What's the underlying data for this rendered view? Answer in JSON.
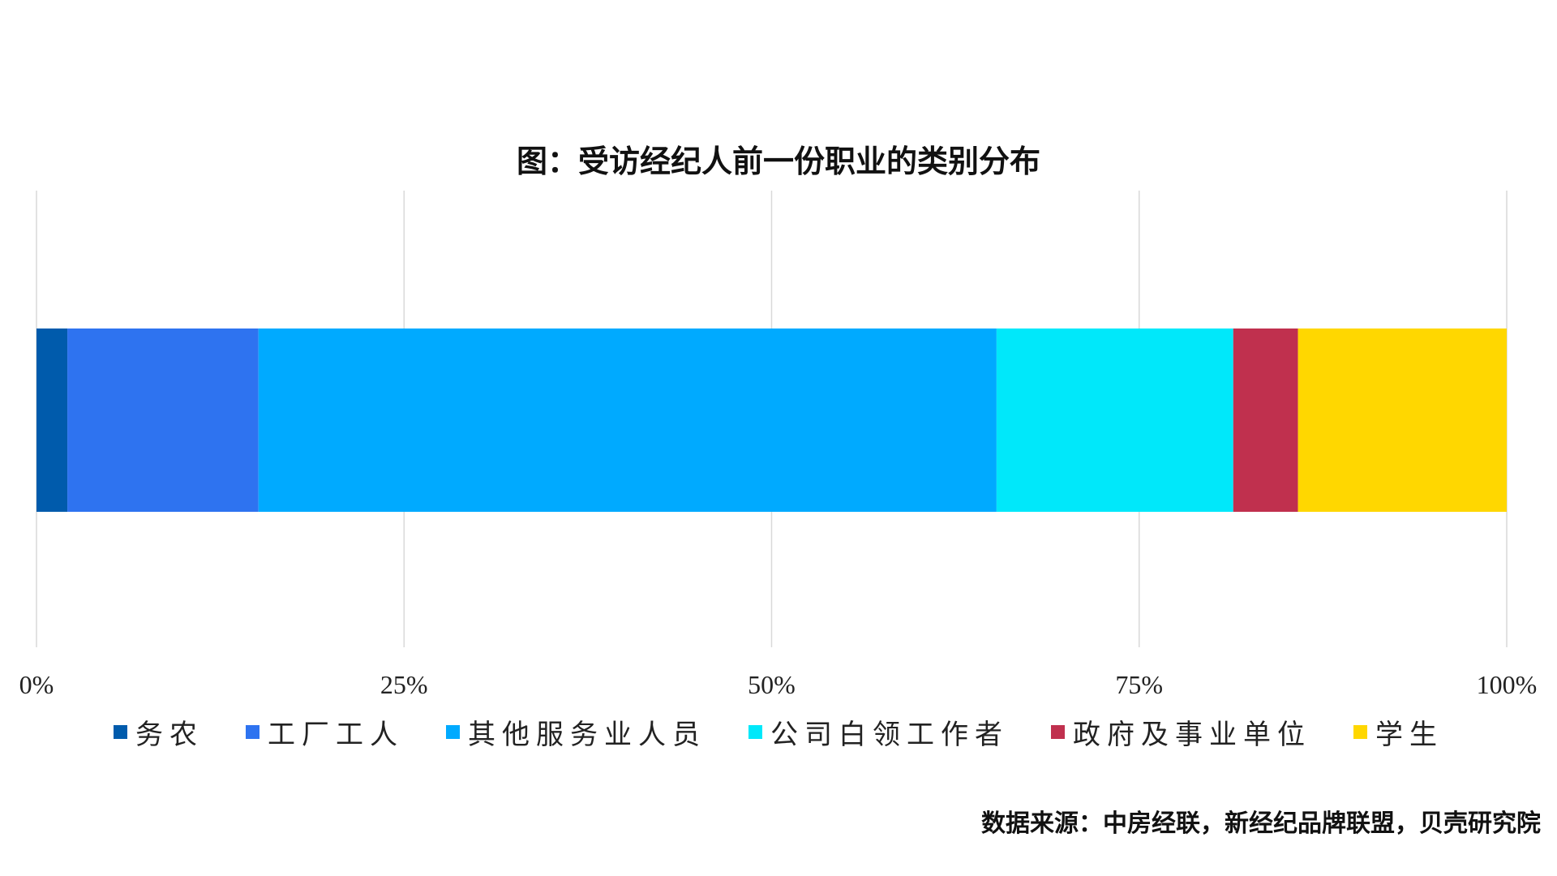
{
  "chart_data": {
    "type": "bar",
    "orientation": "horizontal",
    "stacked": true,
    "title": "图：受访经纪人前一份职业的类别分布",
    "categories": [
      ""
    ],
    "series": [
      {
        "name": "务农",
        "values": [
          2.1
        ],
        "color": "#005BAC"
      },
      {
        "name": "工厂工人",
        "values": [
          13.0
        ],
        "color": "#2E73F0"
      },
      {
        "name": "其他服务业人员",
        "values": [
          50.2
        ],
        "color": "#00AAFF"
      },
      {
        "name": "公司白领工作者",
        "values": [
          16.1
        ],
        "color": "#00E8FA"
      },
      {
        "name": "政府及事业单位",
        "values": [
          4.4
        ],
        "color": "#C0304E"
      },
      {
        "name": "学生",
        "values": [
          14.2
        ],
        "color": "#FFD700"
      }
    ],
    "xlim": [
      0,
      100
    ],
    "xticks": [
      "0%",
      "25%",
      "50%",
      "75%",
      "100%"
    ],
    "grid": true,
    "legend": "bottom",
    "source": "数据来源：中房经联，新经纪品牌联盟，贝壳研究院"
  }
}
